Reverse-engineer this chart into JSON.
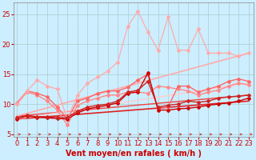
{
  "background_color": "#cceeff",
  "grid_color": "#aacccc",
  "xlabel": "Vent moyen/en rafales ( km/h )",
  "xlabel_color": "#cc0000",
  "xlabel_fontsize": 7,
  "tick_color": "#cc0000",
  "tick_fontsize": 6,
  "yticks": [
    5,
    10,
    15,
    20,
    25
  ],
  "xticks": [
    0,
    1,
    2,
    3,
    4,
    5,
    6,
    7,
    8,
    9,
    10,
    11,
    12,
    13,
    14,
    15,
    16,
    17,
    18,
    19,
    20,
    21,
    22,
    23
  ],
  "xlim": [
    -0.3,
    23.5
  ],
  "ylim": [
    4.5,
    27
  ],
  "arrow_color": "#cc3333",
  "lines": [
    {
      "x": [
        0,
        23
      ],
      "y": [
        7.5,
        10.5
      ],
      "color": "#dd2222",
      "lw": 1.2,
      "marker": null,
      "ms": 0,
      "zorder": 2
    },
    {
      "x": [
        0,
        23
      ],
      "y": [
        8.0,
        11.5
      ],
      "color": "#ee4444",
      "lw": 1.0,
      "marker": null,
      "ms": 0,
      "zorder": 2
    },
    {
      "x": [
        0,
        23
      ],
      "y": [
        8.0,
        18.5
      ],
      "color": "#ffaaaa",
      "lw": 1.2,
      "marker": null,
      "ms": 0,
      "zorder": 2
    },
    {
      "x": [
        0,
        23
      ],
      "y": [
        7.5,
        13.5
      ],
      "color": "#ffcccc",
      "lw": 1.0,
      "marker": null,
      "ms": 0,
      "zorder": 2
    },
    {
      "x": [
        0,
        1,
        2,
        3,
        4,
        5,
        6,
        7,
        8,
        9,
        10,
        11,
        12,
        13,
        14,
        15,
        16,
        17,
        18,
        19,
        20,
        21,
        22,
        23
      ],
      "y": [
        7.5,
        8.0,
        7.8,
        7.7,
        7.6,
        7.5,
        8.5,
        9.2,
        9.5,
        9.8,
        10.2,
        11.8,
        12.0,
        15.2,
        9.0,
        9.0,
        9.2,
        9.3,
        9.5,
        9.8,
        10.0,
        10.2,
        10.5,
        11.0
      ],
      "color": "#cc0000",
      "lw": 1.0,
      "marker": "D",
      "ms": 2.0,
      "zorder": 4
    },
    {
      "x": [
        0,
        1,
        2,
        3,
        4,
        5,
        6,
        7,
        8,
        9,
        10,
        11,
        12,
        13,
        14,
        15,
        16,
        17,
        18,
        19,
        20,
        21,
        22,
        23
      ],
      "y": [
        7.8,
        8.1,
        7.9,
        7.9,
        7.7,
        7.8,
        8.8,
        9.5,
        9.8,
        10.0,
        10.5,
        12.0,
        12.3,
        13.8,
        9.5,
        9.8,
        10.0,
        10.5,
        10.3,
        10.5,
        11.0,
        11.2,
        11.3,
        11.5
      ],
      "color": "#cc2222",
      "lw": 1.0,
      "marker": "D",
      "ms": 2.0,
      "zorder": 4
    },
    {
      "x": [
        0,
        1,
        2,
        3,
        4,
        5,
        6,
        7,
        8,
        9,
        10,
        11,
        12,
        13,
        14,
        15,
        16,
        17,
        18,
        19,
        20,
        21,
        22,
        23
      ],
      "y": [
        10.0,
        12.0,
        11.5,
        10.5,
        9.0,
        6.5,
        9.8,
        10.5,
        11.0,
        11.5,
        11.5,
        12.0,
        12.0,
        11.8,
        13.0,
        12.8,
        12.5,
        12.2,
        11.5,
        12.0,
        12.3,
        13.0,
        13.5,
        13.2
      ],
      "color": "#ff8888",
      "lw": 1.0,
      "marker": "D",
      "ms": 2.0,
      "zorder": 3
    },
    {
      "x": [
        0,
        1,
        2,
        3,
        4,
        5,
        6,
        7,
        8,
        9,
        10,
        11,
        12,
        13,
        14,
        15,
        16,
        17,
        18,
        19,
        20,
        21,
        22,
        23
      ],
      "y": [
        10.2,
        12.2,
        11.8,
        11.2,
        9.5,
        7.5,
        10.5,
        11.0,
        11.8,
        12.2,
        12.2,
        12.8,
        14.0,
        15.0,
        9.2,
        9.5,
        13.0,
        13.0,
        12.0,
        12.5,
        13.0,
        13.8,
        14.2,
        13.8
      ],
      "color": "#ff6666",
      "lw": 1.0,
      "marker": "D",
      "ms": 2.0,
      "zorder": 3
    },
    {
      "x": [
        0,
        1,
        2,
        3,
        4,
        5,
        6,
        7,
        8,
        9,
        10,
        11,
        12,
        13,
        14,
        15,
        16,
        17,
        18,
        19,
        20,
        21,
        22,
        23
      ],
      "y": [
        10.0,
        12.2,
        14.0,
        13.0,
        12.5,
        7.5,
        11.5,
        13.5,
        14.5,
        15.5,
        17.0,
        23.0,
        25.5,
        22.0,
        19.0,
        24.5,
        19.0,
        19.0,
        22.5,
        18.5,
        18.5,
        18.5,
        18.0,
        18.5
      ],
      "color": "#ffaaaa",
      "lw": 0.9,
      "marker": "D",
      "ms": 2.0,
      "zorder": 3
    }
  ]
}
